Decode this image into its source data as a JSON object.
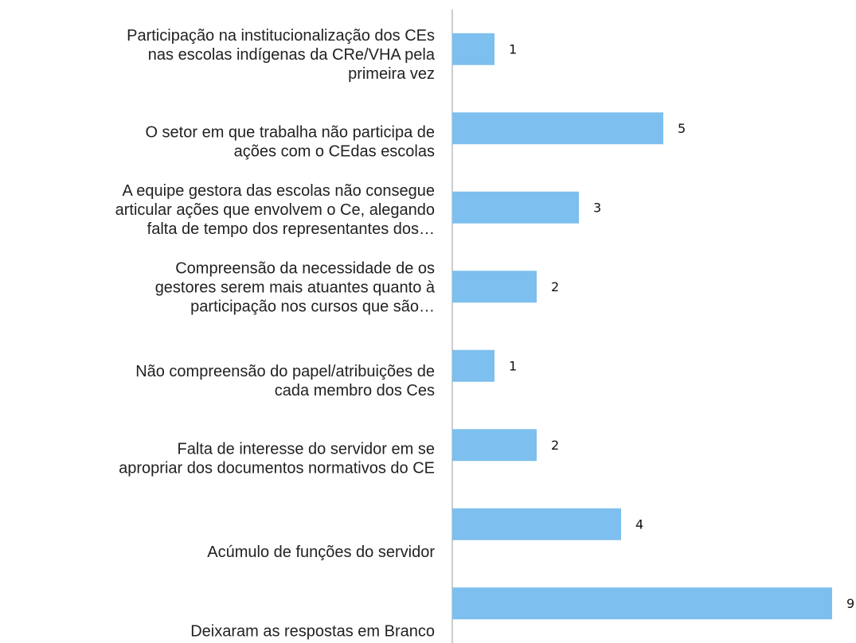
{
  "chart_data": {
    "type": "barh",
    "categories": [
      "Participação na   institucionalização dos CEs\nnas escolas indígenas da CRe/VHA pela\nprimeira vez",
      "O setor em que trabalha não participa de\nações com o CEdas escolas",
      "A equipe gestora das escolas não consegue\narticular ações que envolvem o Ce, alegando\nfalta de tempo dos representantes dos…",
      "Compreensão da necessidade de os\ngestores serem mais atuantes quanto à\nparticipação nos cursos que são…",
      "Não compreensão  do papel/atribuições de\ncada membro dos Ces",
      "Falta de interesse do servidor em se\napropriar dos documentos normativos do CE",
      "Acúmulo de funções do servidor",
      "Deixaram as respostas em Branco"
    ],
    "values": [
      1,
      5,
      3,
      2,
      1,
      2,
      4,
      9
    ],
    "color": "#7dbfee",
    "xlim": [
      0,
      9
    ]
  }
}
